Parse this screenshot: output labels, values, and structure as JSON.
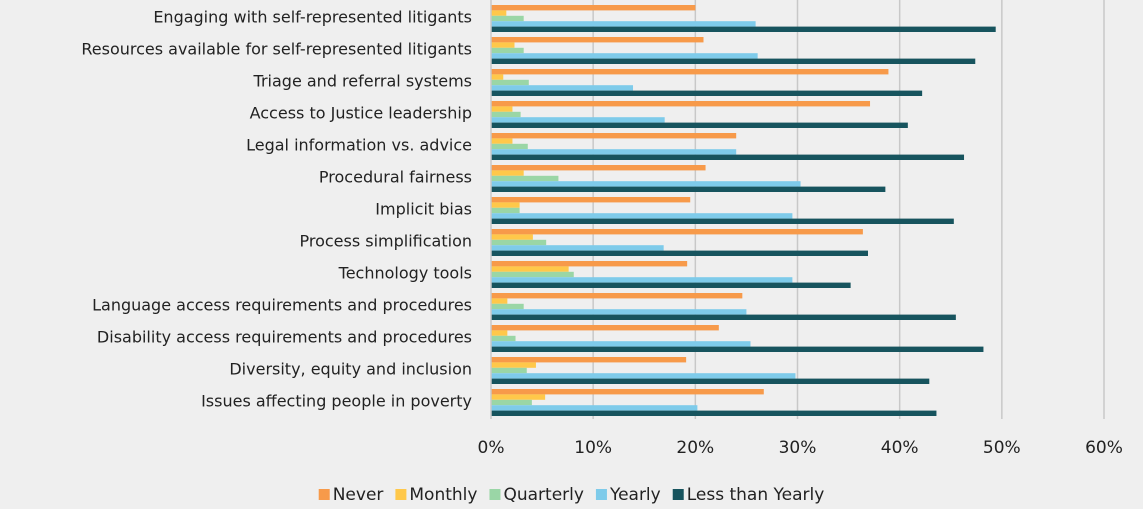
{
  "chart_data": {
    "type": "bar",
    "orientation": "horizontal",
    "categories": [
      "Engaging with self-represented litigants",
      "Resources available for self-represented litigants",
      "Triage and referral systems",
      "Access to Justice leadership",
      "Legal information vs. advice",
      "Procedural fairness",
      "Implicit bias",
      "Process simplification",
      "Technology tools",
      "Language access requirements and procedures",
      "Disability access requirements and procedures",
      "Diversity, equity and inclusion",
      "Issues affecting people in poverty"
    ],
    "series": [
      {
        "name": "Never",
        "color": "#f79a4a",
        "values": [
          20.0,
          20.8,
          38.9,
          37.1,
          24.0,
          21.0,
          19.5,
          36.4,
          19.2,
          24.6,
          22.3,
          19.1,
          26.7
        ]
      },
      {
        "name": "Monthly",
        "color": "#ffc84a",
        "values": [
          1.5,
          2.3,
          1.2,
          2.1,
          2.1,
          3.2,
          2.8,
          4.1,
          7.6,
          1.6,
          1.6,
          4.4,
          5.3
        ]
      },
      {
        "name": "Quarterly",
        "color": "#9ad6a6",
        "values": [
          3.2,
          3.2,
          3.7,
          2.9,
          3.6,
          6.6,
          2.8,
          5.4,
          8.1,
          3.2,
          2.4,
          3.5,
          4.0
        ]
      },
      {
        "name": "Yearly",
        "color": "#7ecbea",
        "values": [
          25.9,
          26.1,
          13.9,
          17.0,
          24.0,
          30.3,
          29.5,
          16.9,
          29.5,
          25.0,
          25.4,
          29.8,
          20.2
        ]
      },
      {
        "name": "Less than Yearly",
        "color": "#17545e",
        "values": [
          49.4,
          47.4,
          42.2,
          40.8,
          46.3,
          38.6,
          45.3,
          36.9,
          35.2,
          45.5,
          48.2,
          42.9,
          43.6
        ]
      }
    ],
    "xlim": [
      0,
      60
    ],
    "xticks": [
      {
        "value": 0,
        "label": "0%"
      },
      {
        "value": 10,
        "label": "10%"
      },
      {
        "value": 20,
        "label": "20%"
      },
      {
        "value": 30,
        "label": "30%"
      },
      {
        "value": 40,
        "label": "40%"
      },
      {
        "value": 50,
        "label": "50%"
      },
      {
        "value": 60,
        "label": "60%"
      }
    ],
    "grid": true,
    "legend": "bottom"
  }
}
